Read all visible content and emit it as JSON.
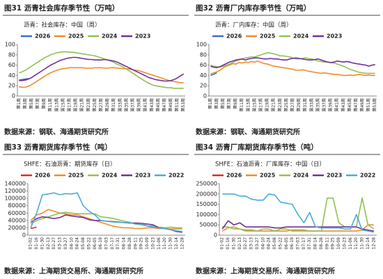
{
  "chart_data": [
    {
      "type": "line",
      "title": "图31  沥青社会库存季节性（万吨）",
      "subtitle": "沥青：社会库存：中国（周）",
      "source": "数据来源：钢联、海通期货研究所",
      "categories": [
        "第1周",
        null,
        "第3周",
        null,
        "第5周",
        null,
        "第7周",
        null,
        "第9周",
        null,
        "第11周",
        null,
        "第13周",
        null,
        "第15周",
        null,
        "第17周",
        null,
        "第19周",
        null,
        "第21周",
        null,
        "第23周",
        null,
        "第25周",
        null,
        "第27周",
        null,
        "第29周",
        null,
        "第31周",
        null,
        "第33周",
        null,
        "第35周",
        null,
        "第37周",
        null,
        "第39周",
        null,
        "第41周",
        null,
        "第43周",
        null,
        "第45周",
        null,
        "第47周",
        null,
        "第49周",
        null,
        "第51周",
        null,
        "第53周"
      ],
      "ylim": [
        0,
        100
      ],
      "yticks": [
        0,
        20,
        40,
        60,
        80,
        100
      ],
      "series": [
        {
          "name": "2026",
          "color": "#3b6fc4",
          "values": [
            31,
            32,
            33,
            34,
            null,
            null,
            null,
            null,
            null,
            null,
            null,
            null,
            null,
            null,
            null,
            null,
            null,
            null,
            null,
            null,
            null,
            null,
            null,
            null,
            null,
            null,
            null,
            null,
            null,
            null,
            null,
            null,
            null,
            null,
            null,
            null,
            null,
            null,
            null,
            null,
            null,
            null,
            null,
            null,
            null,
            null,
            null,
            null,
            null,
            null,
            null,
            null,
            null
          ]
        },
        {
          "name": "2025",
          "color": "#f08c28",
          "values": [
            18,
            17,
            17,
            19,
            22,
            26,
            30,
            34,
            38,
            42,
            45,
            48,
            50,
            52,
            53,
            54,
            55,
            55,
            55,
            55,
            55,
            54,
            54,
            54,
            55,
            55,
            55,
            54,
            54,
            55,
            55,
            54,
            54,
            53,
            53,
            52,
            51,
            50,
            49,
            47,
            45,
            43,
            41,
            39,
            37,
            35,
            33,
            31,
            29,
            28,
            27,
            26,
            26
          ]
        },
        {
          "name": "2024",
          "color": "#92c050",
          "values": [
            45,
            47,
            50,
            54,
            58,
            62,
            66,
            70,
            74,
            77,
            80,
            82,
            84,
            85,
            86,
            86,
            85,
            85,
            84,
            83,
            82,
            81,
            80,
            79,
            78,
            76,
            74,
            72,
            70,
            68,
            65,
            62,
            59,
            56,
            52,
            48,
            44,
            40,
            36,
            32,
            28,
            25,
            22,
            20,
            19,
            18,
            17,
            16,
            16,
            15,
            15,
            15,
            15
          ]
        },
        {
          "name": "2023",
          "color": "#7030a0",
          "values": [
            30,
            30,
            31,
            33,
            36,
            40,
            44,
            48,
            52,
            56,
            60,
            63,
            66,
            69,
            71,
            73,
            74,
            75,
            75,
            74,
            73,
            72,
            71,
            71,
            70,
            70,
            70,
            71,
            70,
            69,
            68,
            66,
            63,
            60,
            57,
            54,
            51,
            48,
            45,
            42,
            39,
            36,
            34,
            32,
            31,
            30,
            29,
            29,
            30,
            32,
            35,
            39,
            43
          ]
        }
      ]
    },
    {
      "type": "line",
      "title": "图32  沥青厂内库存季节性（万吨）",
      "subtitle": "沥青：厂内库存：中国（周）",
      "source": "数据来源：钢联、海通期货研究所",
      "categories": [
        "第1周",
        null,
        "第3周",
        null,
        "第5周",
        null,
        "第7周",
        null,
        "第9周",
        null,
        "第11周",
        null,
        "第13周",
        null,
        "第15周",
        null,
        "第17周",
        null,
        "第19周",
        null,
        "第21周",
        null,
        "第23周",
        null,
        "第25周",
        null,
        "第27周",
        null,
        "第29周",
        null,
        "第31周",
        null,
        "第33周",
        null,
        "第35周",
        null,
        "第37周",
        null,
        "第39周",
        null,
        "第41周",
        null,
        "第43周",
        null,
        "第45周",
        null,
        "第47周",
        null,
        "第49周",
        null,
        "第51周",
        null,
        "第53周"
      ],
      "ylim": [
        0,
        100
      ],
      "yticks": [
        0,
        20,
        40,
        60,
        80,
        100
      ],
      "series": [
        {
          "name": "2026",
          "color": "#3b6fc4",
          "values": [
            40,
            42,
            45,
            null,
            null,
            null,
            null,
            null,
            null,
            null,
            null,
            null,
            null,
            null,
            null,
            null,
            null,
            null,
            null,
            null,
            null,
            null,
            null,
            null,
            null,
            null,
            null,
            null,
            null,
            null,
            null,
            null,
            null,
            null,
            null,
            null,
            null,
            null,
            null,
            null,
            null,
            null,
            null,
            null,
            null,
            null,
            null,
            null,
            null,
            null,
            null,
            null,
            null
          ]
        },
        {
          "name": "2025",
          "color": "#f08c28",
          "values": [
            43,
            45,
            47,
            50,
            55,
            58,
            60,
            63,
            62,
            65,
            64,
            66,
            65,
            67,
            66,
            68,
            65,
            63,
            62,
            60,
            58,
            57,
            56,
            55,
            54,
            53,
            52,
            50,
            50,
            51,
            50,
            48,
            47,
            46,
            45,
            44,
            45,
            44,
            43,
            42,
            42,
            41,
            40,
            40,
            41,
            40,
            41,
            42,
            41,
            40,
            41,
            40,
            40
          ]
        },
        {
          "name": "2024",
          "color": "#92c050",
          "values": [
            60,
            58,
            57,
            56,
            58,
            60,
            62,
            65,
            68,
            70,
            72,
            74,
            75,
            76,
            76,
            78,
            80,
            82,
            84,
            83,
            82,
            80,
            78,
            78,
            77,
            76,
            74,
            72,
            72,
            73,
            74,
            73,
            72,
            70,
            68,
            67,
            66,
            66,
            65,
            64,
            62,
            60,
            58,
            55,
            52,
            50,
            48,
            46,
            45,
            44,
            44,
            44,
            44
          ]
        },
        {
          "name": "2023",
          "color": "#7030a0",
          "values": [
            58,
            56,
            55,
            57,
            60,
            63,
            66,
            68,
            70,
            71,
            72,
            70,
            72,
            73,
            74,
            74,
            73,
            72,
            72,
            73,
            72,
            72,
            71,
            70,
            70,
            72,
            73,
            74,
            73,
            72,
            71,
            70,
            70,
            71,
            72,
            70,
            68,
            66,
            65,
            66,
            68,
            67,
            66,
            67,
            66,
            64,
            63,
            62,
            61,
            60,
            58,
            60,
            61
          ]
        }
      ]
    },
    {
      "type": "line",
      "title": "图33  沥青期货库存季节性（吨）",
      "subtitle": "SHFE：石油沥青：期货库存（日）",
      "source": "数据来源：上海期货交易所、海通期货研究所",
      "categories": [
        "01-02",
        "01-16",
        "01-30",
        "02-13",
        "02-27",
        "03-13",
        "03-27",
        "04-10",
        "04-24",
        "05-08",
        "05-22",
        "06-05",
        "06-19",
        "07-03",
        "07-17",
        "07-31",
        "08-14",
        "08-28",
        "09-11",
        "09-25",
        "10-09",
        "10-23",
        "11-06",
        "11-20",
        "11-30",
        "12-14",
        "12-28"
      ],
      "ylim": [
        0,
        140000
      ],
      "yticks": [
        0,
        20000,
        40000,
        60000,
        80000,
        100000,
        120000,
        140000
      ],
      "series": [
        {
          "name": "2026",
          "color": "#e02828",
          "values": [
            18000,
            22000,
            null,
            null,
            null,
            null,
            null,
            null,
            null,
            null,
            null,
            null,
            null,
            null,
            null,
            null,
            null,
            null,
            null,
            null,
            null,
            null,
            null,
            null,
            null,
            null,
            null
          ]
        },
        {
          "name": "2025",
          "color": "#f08c28",
          "values": [
            40000,
            55000,
            60000,
            70000,
            65000,
            60000,
            58000,
            55000,
            55000,
            50000,
            45000,
            40000,
            35000,
            30000,
            25000,
            22000,
            20000,
            20000,
            18000,
            18000,
            20000,
            20000,
            18000,
            18000,
            17000,
            17000,
            17000
          ]
        },
        {
          "name": "2024",
          "color": "#92c050",
          "values": [
            30000,
            40000,
            45000,
            50000,
            55000,
            60000,
            62000,
            60000,
            58000,
            58000,
            58000,
            58000,
            50000,
            48000,
            46000,
            42000,
            38000,
            35000,
            30000,
            28000,
            25000,
            25000,
            22000,
            20000,
            22000,
            20000,
            20000
          ]
        },
        {
          "name": "2023",
          "color": "#7030a0",
          "values": [
            35000,
            45000,
            50000,
            48000,
            45000,
            48000,
            55000,
            52000,
            50000,
            48000,
            42000,
            40000,
            40000,
            38000,
            37000,
            36000,
            34000,
            33000,
            33000,
            32000,
            30000,
            28000,
            20000,
            18000,
            15000,
            10000,
            8000
          ]
        },
        {
          "name": "2022",
          "color": "#4aacd6",
          "values": [
            20000,
            60000,
            110000,
            112000,
            115000,
            110000,
            113000,
            112000,
            115000,
            80000,
            65000,
            55000,
            40000,
            38000,
            36000,
            35000,
            34000,
            34000,
            30000,
            30000,
            25000,
            22000,
            20000,
            18000,
            15000,
            12000,
            10000
          ]
        }
      ]
    },
    {
      "type": "line",
      "title": "图34  沥青厂库期货库存季节性（吨）",
      "subtitle": "SHFE：石油沥青：厂库库存：中国（日）",
      "source": "数据来源：上海期货交易所、海通期货研究所",
      "categories": [
        "01-02",
        "01-16",
        "01-30",
        "02-13",
        "02-27",
        "03-13",
        "03-27",
        "04-10",
        "04-24",
        "05-08",
        "05-22",
        "06-05",
        "06-19",
        "07-03",
        "07-17",
        "07-31",
        "08-14",
        "08-28",
        "09-11",
        "09-25",
        "10-09",
        "10-23",
        "11-06",
        "11-20",
        "11-30",
        "12-14",
        "12-28"
      ],
      "ylim": [
        0,
        250000
      ],
      "yticks": [
        0,
        50000,
        100000,
        150000,
        200000,
        250000
      ],
      "series": [
        {
          "name": "2026",
          "color": "#e02828",
          "values": [
            40000,
            40000,
            null,
            null,
            null,
            null,
            null,
            null,
            null,
            null,
            null,
            null,
            null,
            null,
            null,
            null,
            null,
            null,
            null,
            null,
            null,
            null,
            null,
            null,
            null,
            null,
            null
          ]
        },
        {
          "name": "2025",
          "color": "#f08c28",
          "values": [
            20000,
            35000,
            40000,
            30000,
            25000,
            25000,
            20000,
            20000,
            20000,
            20000,
            20000,
            20000,
            25000,
            25000,
            25000,
            20000,
            20000,
            20000,
            20000,
            20000,
            20000,
            20000,
            20000,
            20000,
            25000,
            50000,
            50000
          ]
        },
        {
          "name": "2024",
          "color": "#92c050",
          "values": [
            40000,
            40000,
            30000,
            30000,
            20000,
            20000,
            20000,
            30000,
            30000,
            20000,
            30000,
            30000,
            20000,
            20000,
            20000,
            20000,
            20000,
            20000,
            180000,
            180000,
            60000,
            40000,
            40000,
            40000,
            180000,
            50000,
            30000
          ]
        },
        {
          "name": "2023",
          "color": "#7030a0",
          "values": [
            30000,
            70000,
            50000,
            60000,
            40000,
            40000,
            40000,
            40000,
            40000,
            35000,
            35000,
            40000,
            40000,
            40000,
            40000,
            40000,
            40000,
            40000,
            40000,
            40000,
            40000,
            40000,
            40000,
            40000,
            30000,
            25000,
            20000
          ]
        },
        {
          "name": "2022",
          "color": "#4aacd6",
          "values": [
            200000,
            200000,
            200000,
            190000,
            190000,
            175000,
            170000,
            170000,
            200000,
            195000,
            160000,
            155000,
            150000,
            100000,
            60000,
            110000,
            40000,
            35000,
            35000,
            35000,
            35000,
            30000,
            30000,
            100000,
            25000,
            20000,
            15000
          ]
        }
      ]
    }
  ]
}
